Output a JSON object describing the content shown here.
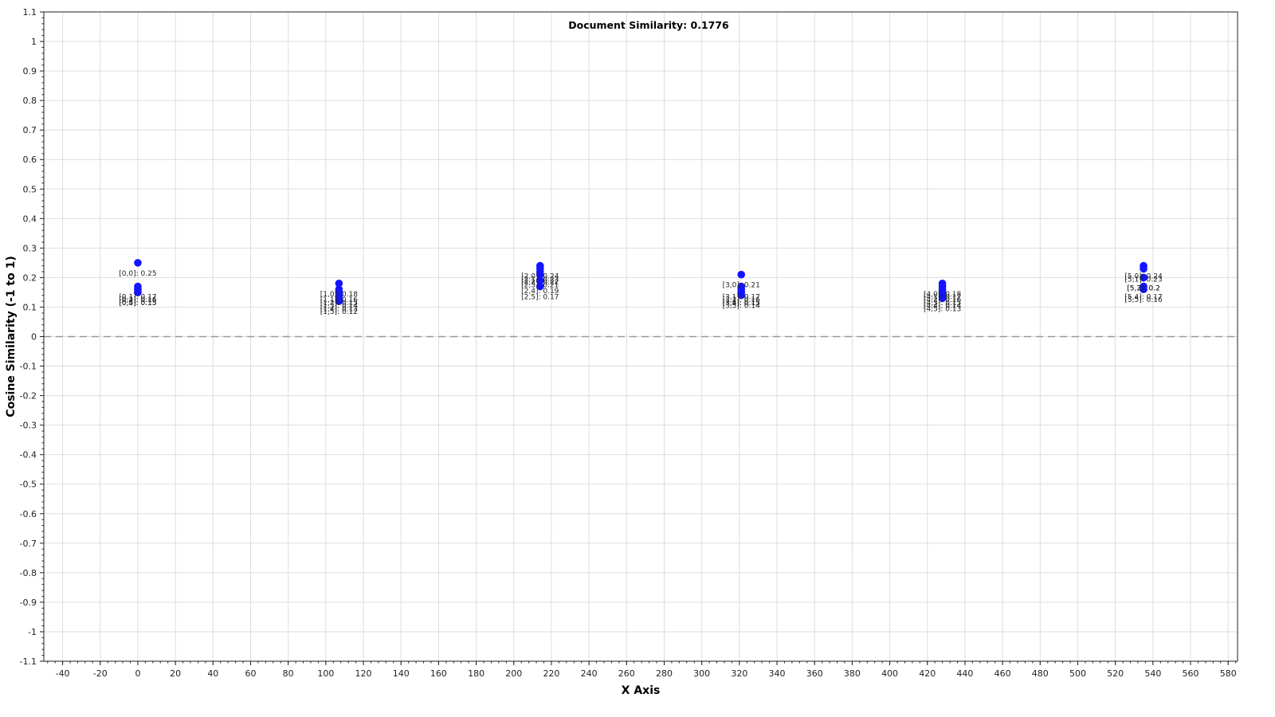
{
  "chart_data": {
    "type": "scatter",
    "title": "Document Similarity: 0.1776",
    "xlabel": "X Axis",
    "ylabel": "Cosine Similarity (-1 to 1)",
    "xlim": [
      -50,
      585
    ],
    "ylim": [
      -1.1,
      1.1
    ],
    "x_major_step": 20,
    "y_major_step": 0.1,
    "grid": true,
    "reference_line_y": 0,
    "point_color": "#1414ff",
    "grid_color": "#dddddd",
    "reference_line_color": "#999999",
    "series": [
      {
        "points": [
          {
            "x": 0,
            "y": 0.25,
            "label": "[0,0]: 0.25"
          },
          {
            "x": 0,
            "y": 0.17,
            "label": "[0,1]: 0.17"
          },
          {
            "x": 0,
            "y": 0.16,
            "label": "[0,2]: 0.16"
          },
          {
            "x": 0,
            "y": 0.16,
            "label": "[0,3]: 0.16"
          },
          {
            "x": 0,
            "y": 0.15,
            "label": "[0,4]: 0.15"
          },
          {
            "x": 0,
            "y": 0.15,
            "label": "[0,5]: 0.15"
          },
          {
            "x": 107,
            "y": 0.18,
            "label": "[1,0]: 0.18"
          },
          {
            "x": 107,
            "y": 0.16,
            "label": "[1,1]: 0.16"
          },
          {
            "x": 107,
            "y": 0.15,
            "label": "[1,2]: 0.15"
          },
          {
            "x": 107,
            "y": 0.14,
            "label": "[1,3]: 0.14"
          },
          {
            "x": 107,
            "y": 0.13,
            "label": "[1,4]: 0.13"
          },
          {
            "x": 107,
            "y": 0.12,
            "label": "[1,5]: 0.12"
          },
          {
            "x": 214,
            "y": 0.24,
            "label": "[2,0]: 0.24"
          },
          {
            "x": 214,
            "y": 0.23,
            "label": "[2,1]: 0.23"
          },
          {
            "x": 214,
            "y": 0.22,
            "label": "[2,2]: 0.22"
          },
          {
            "x": 214,
            "y": 0.21,
            "label": "[2,3]: 0.21"
          },
          {
            "x": 214,
            "y": 0.19,
            "label": "[2,4]: 0.19"
          },
          {
            "x": 214,
            "y": 0.17,
            "label": "[2,5]: 0.17"
          },
          {
            "x": 321,
            "y": 0.21,
            "label": "[3,0]: 0.21"
          },
          {
            "x": 321,
            "y": 0.17,
            "label": "[3,1]: 0.17"
          },
          {
            "x": 321,
            "y": 0.16,
            "label": "[3,2]: 0.16"
          },
          {
            "x": 321,
            "y": 0.15,
            "label": "[3,3]: 0.15"
          },
          {
            "x": 321,
            "y": 0.15,
            "label": "[3,4]: 0.15"
          },
          {
            "x": 321,
            "y": 0.14,
            "label": "[3,5]: 0.14"
          },
          {
            "x": 428,
            "y": 0.18,
            "label": "[4,0]: 0.18"
          },
          {
            "x": 428,
            "y": 0.17,
            "label": "[4,1]: 0.17"
          },
          {
            "x": 428,
            "y": 0.16,
            "label": "[4,2]: 0.16"
          },
          {
            "x": 428,
            "y": 0.15,
            "label": "[4,3]: 0.15"
          },
          {
            "x": 428,
            "y": 0.14,
            "label": "[4,4]: 0.14"
          },
          {
            "x": 428,
            "y": 0.13,
            "label": "[4,5]: 0.13"
          },
          {
            "x": 535,
            "y": 0.24,
            "label": "[5,0]: 0.24"
          },
          {
            "x": 535,
            "y": 0.23,
            "label": "[5,1]: 0.23"
          },
          {
            "x": 535,
            "y": 0.2,
            "label": "[5,2]: 0.2"
          },
          {
            "x": 535,
            "y": 0.2,
            "label": "[5,3]: 0.2"
          },
          {
            "x": 535,
            "y": 0.17,
            "label": "[5,4]: 0.17"
          },
          {
            "x": 535,
            "y": 0.16,
            "label": "[5,5]: 0.16"
          }
        ]
      }
    ]
  }
}
